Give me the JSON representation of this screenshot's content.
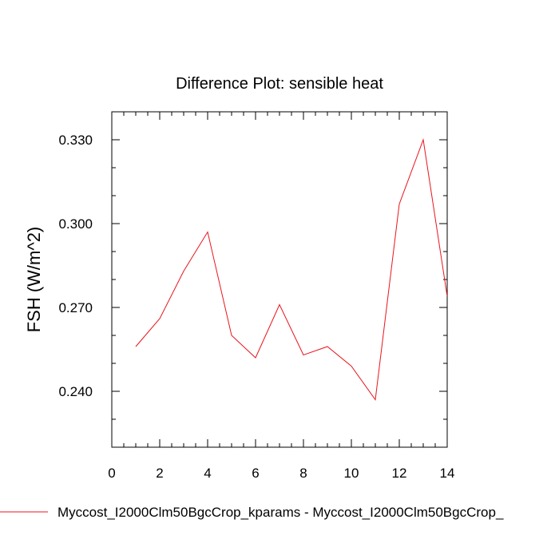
{
  "chart_data": {
    "type": "line",
    "title": "Difference Plot: sensible heat",
    "xlabel": "",
    "ylabel": "FSH  (W/m^2)",
    "xlim": [
      0,
      14
    ],
    "ylim": [
      0.22,
      0.34
    ],
    "x_ticks": [
      0,
      2,
      4,
      6,
      8,
      10,
      12,
      14
    ],
    "x_tick_labels": [
      "0",
      "2",
      "4",
      "6",
      "8",
      "10",
      "12",
      "14"
    ],
    "y_ticks": [
      0.24,
      0.27,
      0.3,
      0.33
    ],
    "y_tick_labels": [
      "0.240",
      "0.270",
      "0.300",
      "0.330"
    ],
    "grid": false,
    "legend_position": "bottom",
    "series": [
      {
        "name": "Myccost_I2000Clm50BgcCrop_kparams - Myccost_I2000Clm50BgcCrop_",
        "color": "#e8141c",
        "x": [
          1,
          2,
          3,
          4,
          5,
          6,
          7,
          8,
          9,
          10,
          11,
          12,
          13,
          14
        ],
        "values": [
          0.256,
          0.266,
          0.283,
          0.297,
          0.26,
          0.252,
          0.271,
          0.253,
          0.256,
          0.249,
          0.237,
          0.307,
          0.33,
          0.274
        ]
      }
    ]
  }
}
